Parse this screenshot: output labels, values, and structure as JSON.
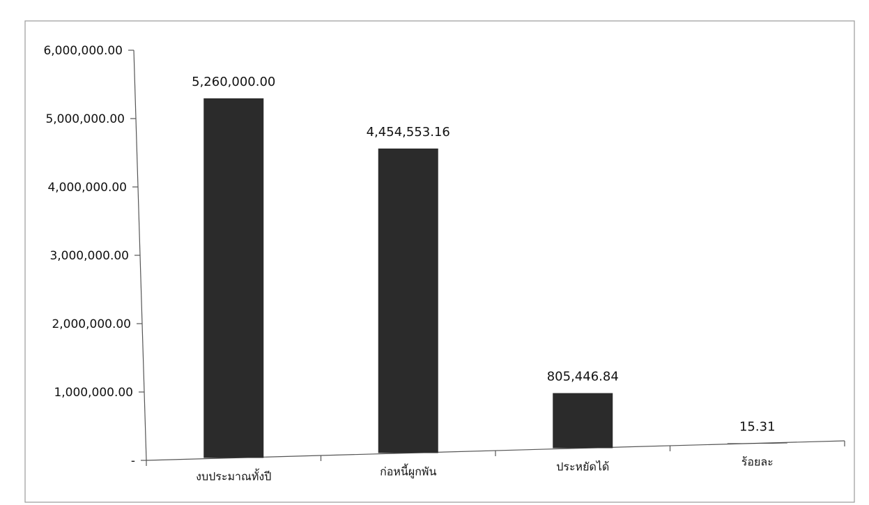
{
  "chart_data": {
    "type": "bar",
    "categories": [
      "งบประมาณทั้งปี",
      "ก่อหนี้ผูกพัน",
      "ประหยัดได้",
      "ร้อยละ"
    ],
    "values": [
      5260000.0,
      4454553.16,
      805446.84,
      15.31
    ],
    "data_labels": [
      "5,260,000.00",
      "4,454,553.16",
      "805,446.84",
      "15.31"
    ],
    "y_ticks": [
      0,
      1000000,
      2000000,
      3000000,
      4000000,
      5000000,
      6000000
    ],
    "y_tick_labels": [
      "-",
      "1,000,000.00",
      "2,000,000.00",
      "3,000,000.00",
      "4,000,000.00",
      "5,000,000.00",
      "6,000,000.00"
    ],
    "ylim": [
      0,
      6000000
    ],
    "title": "",
    "xlabel": "",
    "ylabel": "",
    "grid": false,
    "legend": "none",
    "bar_color": "#2b2b2b"
  }
}
